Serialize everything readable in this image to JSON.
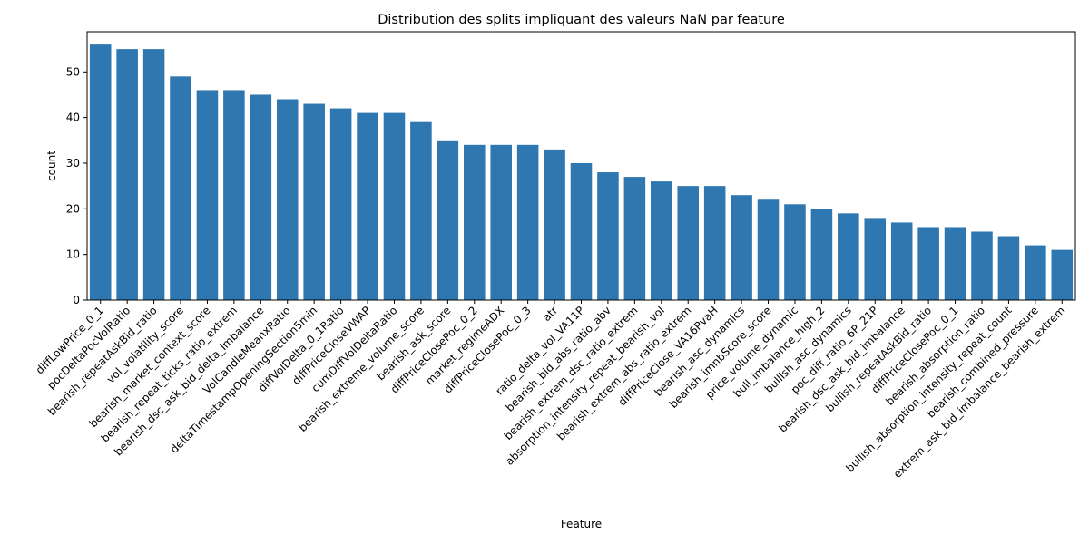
{
  "chart_data": {
    "type": "bar",
    "title": "Distribution des splits impliquant des valeurs NaN par feature",
    "xlabel": "Feature",
    "ylabel": "count",
    "ylim": [
      0,
      58.8
    ],
    "yticks": [
      0,
      10,
      20,
      30,
      40,
      50
    ],
    "grid": false,
    "legend": "none",
    "bar_color": "#2e77b0",
    "categories": [
      "diffLowPrice_0_1",
      "pocDeltaPocVolRatio",
      "bearish_repeatAskBid_ratio",
      "vol_volatility_score",
      "bearish_market_context_score",
      "bearish_repeat_ticks_ratio_extrem",
      "bearish_dsc_ask_bid_delta_imbalance",
      "VolCandleMeanxRatio",
      "deltaTimestampOpeningSection5min",
      "diffVolDelta_0_1Ratio",
      "diffPriceCloseVWAP",
      "cumDiffVolDeltaRatio",
      "bearish_extreme_volume_score",
      "bearish_ask_score",
      "diffPriceClosePoc_0_2",
      "market_regimeADX",
      "diffPriceClosePoc_0_3",
      "atr",
      "ratio_delta_vol_VA11P",
      "bearish_bid_abs_ratio_abv",
      "bearish_extrem_dsc_ratio_extrem",
      "absorption_intensity_repeat_bearish_vol",
      "bearish_extrem_abs_ratio_extrem",
      "diffPriceClose_VA16PvaH",
      "bearish_asc_dynamics",
      "bearish_imnbScore_score",
      "price_volume_dynamic",
      "bull_imbalance_high_2",
      "bullish_asc_dynamics",
      "poc_diff_ratio_6P_21P",
      "bearish_dsc_ask_bid_imbalance",
      "bullish_repeatAskBid_ratio",
      "diffPriceClosePoc_0_1",
      "bearish_absorption_ratio",
      "bullish_absorption_intensity_repeat_count",
      "bearish_combined_pressure",
      "extrem_ask_bid_imbalance_bearish_extrem"
    ],
    "values": [
      56,
      55,
      55,
      49,
      46,
      46,
      45,
      44,
      43,
      42,
      41,
      41,
      39,
      35,
      34,
      34,
      34,
      33,
      30,
      28,
      27,
      26,
      25,
      25,
      23,
      22,
      21,
      20,
      19,
      18,
      17,
      16,
      16,
      15,
      14,
      12,
      11
    ]
  }
}
